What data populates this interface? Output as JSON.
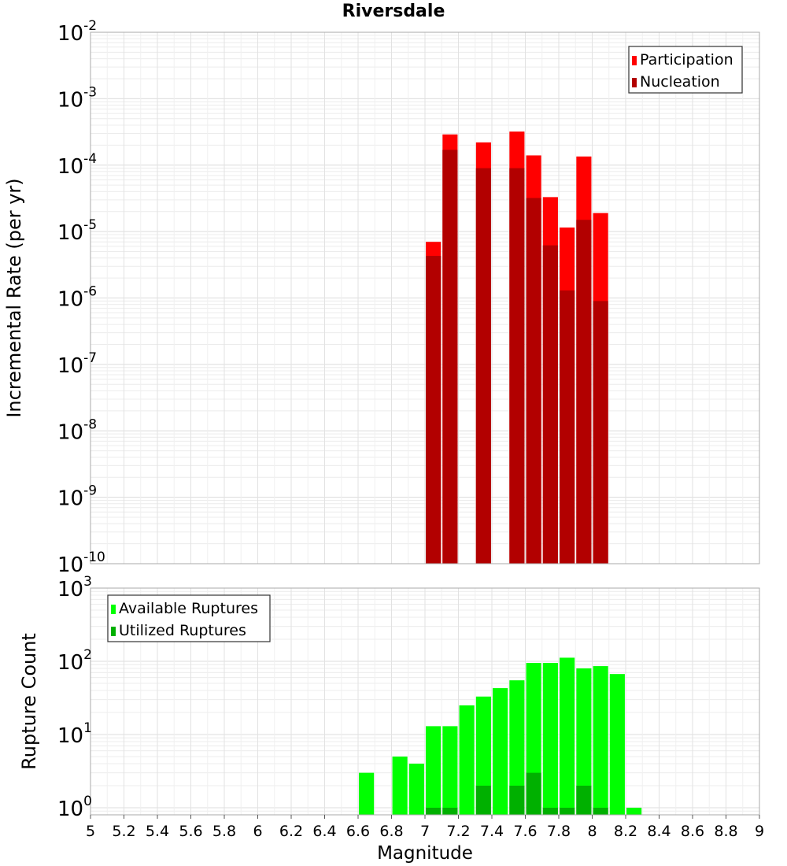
{
  "chart_data": [
    {
      "type": "bar",
      "title": "Riversdale",
      "ylabel": "Incremental Rate (per yr)",
      "xlabel": "",
      "y_scale": "log",
      "ylim": [
        1e-10,
        0.01
      ],
      "xlim": [
        5,
        9
      ],
      "grid": true,
      "legend_position": "top-right",
      "bar_width": 0.09,
      "series": [
        {
          "name": "Participation",
          "color": "#ff0000",
          "x": [
            7.05,
            7.15,
            7.35,
            7.55,
            7.65,
            7.75,
            7.85,
            7.95,
            8.05
          ],
          "values": [
            7e-06,
            0.00029,
            0.00022,
            0.00032,
            0.00014,
            3.3e-05,
            1.15e-05,
            0.000135,
            1.9e-05
          ]
        },
        {
          "name": "Nucleation",
          "color": "#b20000",
          "x": [
            7.05,
            7.15,
            7.35,
            7.55,
            7.65,
            7.75,
            7.85,
            7.95,
            8.05
          ],
          "values": [
            4.3e-06,
            0.00017,
            9e-05,
            9e-05,
            3.2e-05,
            6.2e-06,
            1.3e-06,
            1.5e-05,
            9e-07
          ]
        }
      ]
    },
    {
      "type": "bar",
      "title": "",
      "ylabel": "Rupture Count",
      "xlabel": "Magnitude",
      "y_scale": "log",
      "ylim": [
        0.8,
        1000
      ],
      "xlim": [
        5,
        9
      ],
      "grid": true,
      "legend_position": "top-left",
      "bar_width": 0.09,
      "x_ticks": [
        "5",
        "5.2",
        "5.4",
        "5.6",
        "5.8",
        "6",
        "6.2",
        "6.4",
        "6.6",
        "6.8",
        "7",
        "7.2",
        "7.4",
        "7.6",
        "7.8",
        "8",
        "8.2",
        "8.4",
        "8.6",
        "8.8",
        "9"
      ],
      "series": [
        {
          "name": "Available Ruptures",
          "color": "#00ff00",
          "x": [
            6.65,
            6.85,
            6.95,
            7.05,
            7.15,
            7.25,
            7.35,
            7.45,
            7.55,
            7.65,
            7.75,
            7.85,
            7.95,
            8.05,
            8.15,
            8.25
          ],
          "values": [
            3,
            5,
            4,
            13,
            13,
            25,
            33,
            43,
            55,
            95,
            95,
            112,
            80,
            86,
            67,
            1
          ]
        },
        {
          "name": "Utilized Ruptures",
          "color": "#00b000",
          "x": [
            7.05,
            7.15,
            7.35,
            7.55,
            7.65,
            7.75,
            7.85,
            7.95,
            8.05
          ],
          "values": [
            1,
            1,
            2,
            2,
            3,
            1,
            1,
            2,
            1
          ]
        }
      ]
    }
  ]
}
